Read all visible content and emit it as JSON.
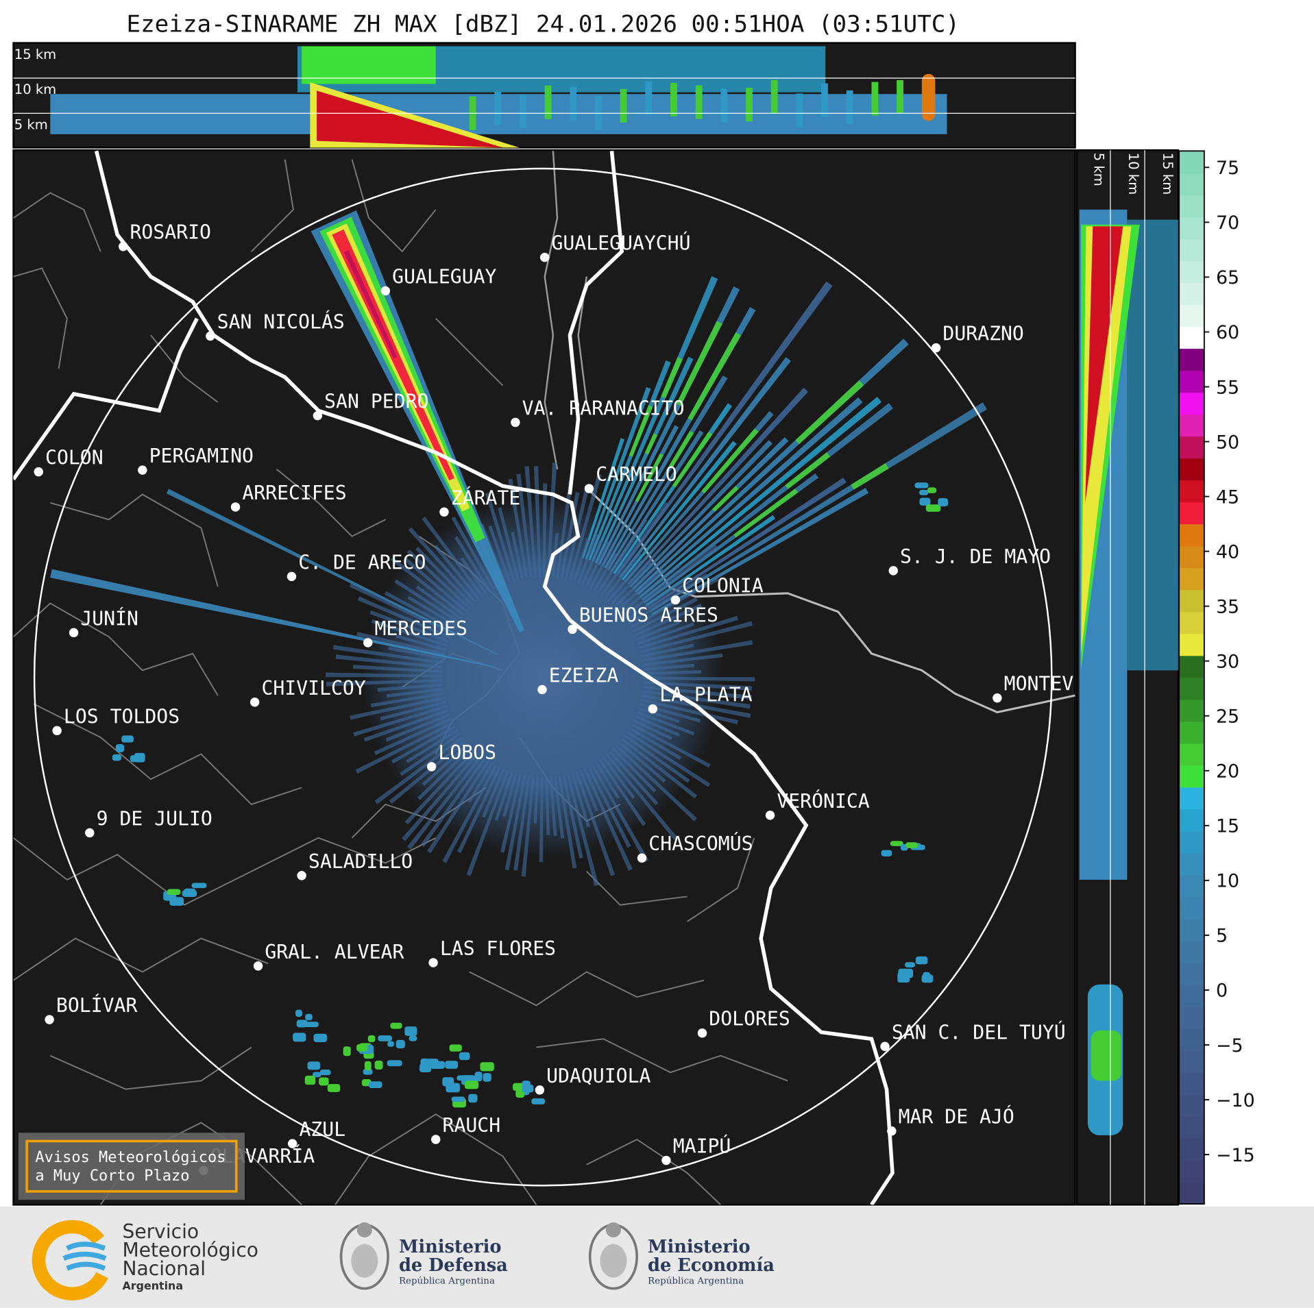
{
  "header": {
    "title": "Ezeiza-SINARAME ZH MAX [dBZ] 24.01.2026 00:51HOA (03:51UTC)"
  },
  "cross_section": {
    "top_labels": [
      "15 km",
      "10 km",
      "5 km"
    ],
    "side_labels": [
      "5 km",
      "10 km",
      "15 km"
    ]
  },
  "map": {
    "cities": [
      "ROSARIO",
      "GUALEGUAYCHÚ",
      "GUALEGUAY",
      "SAN NICOLÁS",
      "DURAZNO",
      "SAN PEDRO",
      "VA. PARANACITO",
      "COLON",
      "PERGAMINO",
      "CARMELO",
      "ARRECIFES",
      "ZÁRATE",
      "S. J. DE MAYO",
      "C. DE ARECO",
      "COLONIA",
      "BUENOS AIRES",
      "JUNÍN",
      "MERCEDES",
      "EZEIZA",
      "CHIVILCOY",
      "MONTEVIDEO",
      "LA PLATA",
      "LOS TOLDOS",
      "LOBOS",
      "VERÓNICA",
      "9 DE JULIO",
      "CHASCOMÚS",
      "SALADILLO",
      "LAS FLORES",
      "GRAL. ALVEAR",
      "BOLÍVAR",
      "DOLORES",
      "SAN C. DEL TUYÚ",
      "UDAQUIOLA",
      "MAR DE AJÓ",
      "AZUL",
      "RAUCH",
      "MAIPÚ",
      "OLAVARRÍA"
    ],
    "notice": [
      "Avisos Meteorológicos",
      "a Muy Corto Plazo"
    ]
  },
  "colorbar": {
    "ylim": [
      -19.5,
      76.5
    ],
    "yticks": [
      {
        "value": -15,
        "label": "−15"
      },
      {
        "value": -10,
        "label": "−10"
      },
      {
        "value": -5,
        "label": "−5"
      },
      0,
      5,
      10,
      15,
      20,
      25,
      30,
      35,
      40,
      45,
      50,
      55,
      60,
      65,
      70,
      75
    ],
    "colors": [
      "#3d3f6e",
      "#3e4373",
      "#3e4877",
      "#3f4d7c",
      "#3f5282",
      "#3f5787",
      "#405d8c",
      "#406291",
      "#406796",
      "#406c9b",
      "#3f72a0",
      "#3e78a5",
      "#3d7eaa",
      "#3b84af",
      "#3989b4",
      "#3690bb",
      "#2f98c4",
      "#28a3cf",
      "#2bb3e0",
      "#3fe03a",
      "#45cc35",
      "#3cb02e",
      "#34982a",
      "#2e8225",
      "#2a6e20",
      "#e8e83a",
      "#d8d038",
      "#c8c030",
      "#d8a020",
      "#d88a18",
      "#e07810",
      "#f01e3a",
      "#d01020",
      "#a00012",
      "#c0105a",
      "#e020b0",
      "#f010f0",
      "#b000b0",
      "#800080",
      "#ffffff",
      "#e6f7f0",
      "#d6f2e8",
      "#c6eee0",
      "#b6e9d8",
      "#a8e5d0",
      "#9ae1c8",
      "#8edcc0",
      "#84d8ba"
    ]
  },
  "footer": {
    "smn": [
      "Servicio",
      "Meteorológico",
      "Nacional",
      "Argentina"
    ],
    "defensa": [
      "Ministerio",
      "de Defensa",
      "República Argentina"
    ],
    "economia": [
      "Ministerio",
      "de Economía",
      "República Argentina"
    ]
  }
}
